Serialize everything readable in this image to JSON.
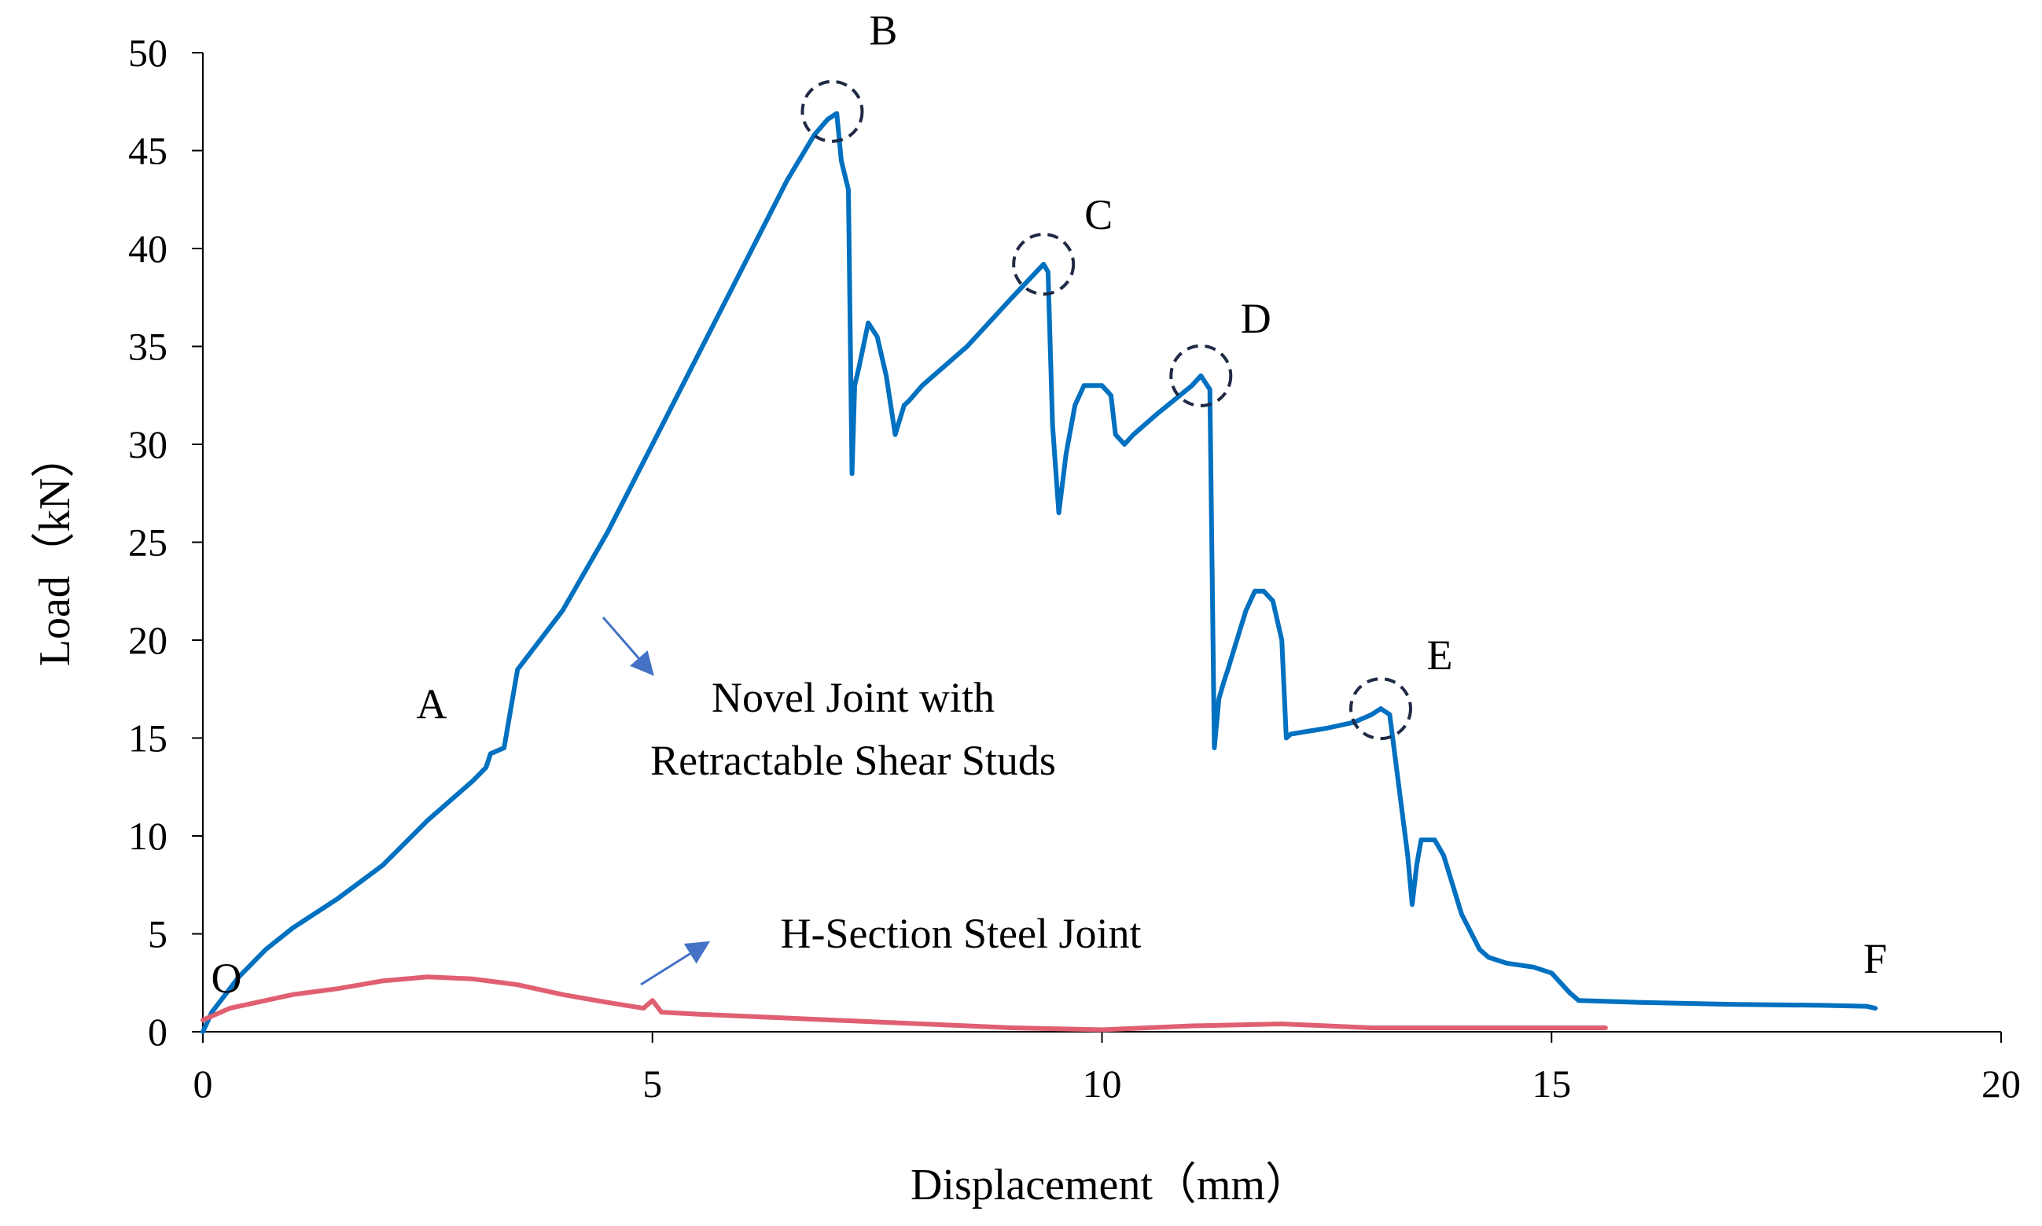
{
  "chart_data": {
    "type": "line",
    "title": "",
    "xlabel": "Displacement（mm）",
    "ylabel": "Load（kN）",
    "xlim": [
      0,
      20
    ],
    "ylim": [
      0,
      50
    ],
    "xticks": [
      0,
      5,
      10,
      15,
      20
    ],
    "yticks": [
      0,
      5,
      10,
      15,
      20,
      25,
      30,
      35,
      40,
      45,
      50
    ],
    "grid": false,
    "series": [
      {
        "name": "Novel Joint with Retractable Shear Studs",
        "label_lines": [
          "Novel Joint with",
          "Retractable Shear Studs"
        ],
        "color": "#0070C0",
        "x": [
          0,
          0.1,
          0.2,
          0.4,
          0.7,
          1.0,
          1.5,
          2.0,
          2.5,
          3.0,
          3.15,
          3.2,
          3.35,
          3.5,
          4.0,
          4.5,
          5.0,
          5.5,
          6.0,
          6.5,
          6.8,
          6.95,
          7.05,
          7.1,
          7.18,
          7.22,
          7.25,
          7.3,
          7.4,
          7.5,
          7.6,
          7.7,
          7.8,
          7.85,
          8.0,
          8.5,
          9.0,
          9.35,
          9.4,
          9.45,
          9.52,
          9.6,
          9.7,
          9.8,
          10.0,
          10.1,
          10.15,
          10.25,
          10.35,
          10.6,
          11.0,
          11.1,
          11.2,
          11.25,
          11.3,
          11.35,
          11.4,
          11.5,
          11.6,
          11.7,
          11.8,
          11.9,
          12.0,
          12.05,
          12.1,
          12.5,
          12.8,
          13.0,
          13.1,
          13.2,
          13.4,
          13.45,
          13.5,
          13.55,
          13.7,
          13.8,
          13.9,
          14.0,
          14.2,
          14.3,
          14.5,
          14.8,
          15.0,
          15.1,
          15.2,
          15.3,
          16.0,
          17.0,
          18.0,
          18.5,
          18.6
        ],
        "y": [
          0,
          1.0,
          1.6,
          2.8,
          4.2,
          5.3,
          6.8,
          8.5,
          10.8,
          12.8,
          13.5,
          14.2,
          14.5,
          18.5,
          21.5,
          25.5,
          30.0,
          34.5,
          39.0,
          43.5,
          45.8,
          46.6,
          46.9,
          44.5,
          43.0,
          28.5,
          33.0,
          34.0,
          36.2,
          35.5,
          33.5,
          30.5,
          32.0,
          32.2,
          33.0,
          35.0,
          37.5,
          39.2,
          38.8,
          31.0,
          26.5,
          29.5,
          32.0,
          33.0,
          33.0,
          32.5,
          30.5,
          30.0,
          30.5,
          31.5,
          33.0,
          33.5,
          32.8,
          14.5,
          17.0,
          17.8,
          18.5,
          20.0,
          21.5,
          22.5,
          22.5,
          22.0,
          20.0,
          15.0,
          15.2,
          15.5,
          15.8,
          16.2,
          16.5,
          16.2,
          9.0,
          6.5,
          8.5,
          9.8,
          9.8,
          9.0,
          7.5,
          6.0,
          4.2,
          3.8,
          3.5,
          3.3,
          3.0,
          2.5,
          2.0,
          1.6,
          1.5,
          1.4,
          1.35,
          1.3,
          1.2
        ]
      },
      {
        "name": "H-Section Steel Joint",
        "label_lines": [
          "H-Section Steel Joint"
        ],
        "color": "#E06071",
        "x": [
          0,
          0.3,
          0.6,
          1.0,
          1.5,
          2.0,
          2.5,
          3.0,
          3.5,
          4.0,
          4.5,
          4.9,
          5.0,
          5.1,
          5.5,
          6.0,
          7.0,
          8.0,
          9.0,
          10.0,
          11.0,
          12.0,
          13.0,
          14.0,
          15.0,
          15.6
        ],
        "y": [
          0.6,
          1.2,
          1.5,
          1.9,
          2.2,
          2.6,
          2.8,
          2.7,
          2.4,
          1.9,
          1.5,
          1.2,
          1.6,
          1.0,
          0.9,
          0.8,
          0.6,
          0.4,
          0.2,
          0.1,
          0.3,
          0.4,
          0.2,
          0.2,
          0.2,
          0.2
        ]
      }
    ],
    "point_labels": [
      {
        "label": "O",
        "x": 0.0,
        "y": 0.0
      },
      {
        "label": "A",
        "x": 3.2,
        "y": 14.2
      },
      {
        "label": "B",
        "x": 7.0,
        "y": 47.0,
        "circled": true
      },
      {
        "label": "C",
        "x": 9.35,
        "y": 39.2,
        "circled": true
      },
      {
        "label": "D",
        "x": 11.1,
        "y": 33.5,
        "circled": true
      },
      {
        "label": "E",
        "x": 13.1,
        "y": 16.5,
        "circled": true
      },
      {
        "label": "F",
        "x": 18.6,
        "y": 1.2
      }
    ]
  }
}
